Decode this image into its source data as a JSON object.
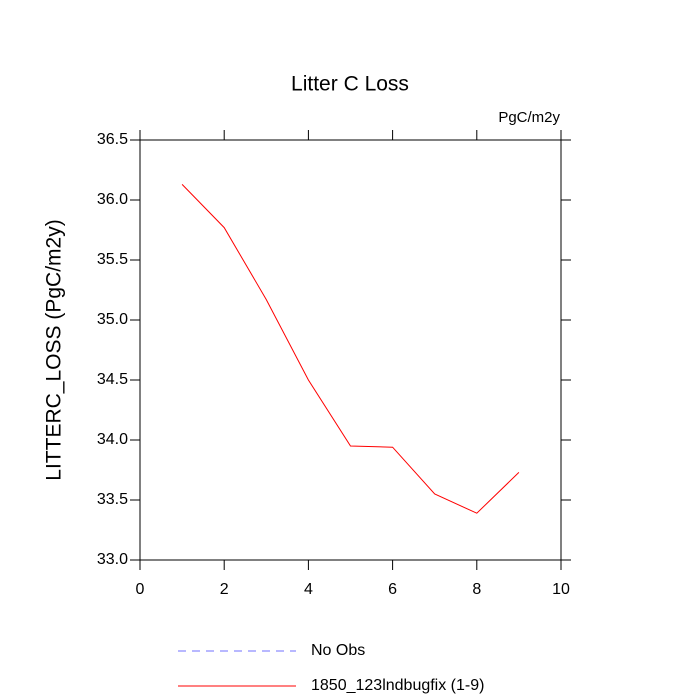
{
  "chart_data": {
    "type": "line",
    "title": "Litter C Loss",
    "units": "PgC/m2y",
    "ylabel": "LITTERC_LOSS  (PgC/m2y)",
    "x": [
      1,
      2,
      3,
      4,
      5,
      6,
      7,
      8,
      9
    ],
    "series": [
      {
        "name": "No Obs",
        "color": "#7070ff",
        "dash": true,
        "values": [
          null,
          null,
          null,
          null,
          null,
          null,
          null,
          null,
          null
        ]
      },
      {
        "name": "1850_123lndbugfix (1-9)",
        "color": "#ff0000",
        "dash": false,
        "values": [
          36.13,
          35.77,
          35.17,
          34.5,
          33.95,
          33.94,
          33.55,
          33.39,
          33.73
        ]
      }
    ],
    "xlim": [
      0,
      10
    ],
    "xticks": [
      0,
      2,
      4,
      6,
      8,
      10
    ],
    "ylim": [
      33,
      36.5
    ],
    "yticks": [
      {
        "value": 33,
        "label": "33.0"
      },
      33.5,
      {
        "value": 34,
        "label": "34.0"
      },
      34.5,
      {
        "value": 35,
        "label": "35.0"
      },
      35.5,
      {
        "value": 36,
        "label": "36.0"
      },
      36.5
    ],
    "grid": false
  }
}
